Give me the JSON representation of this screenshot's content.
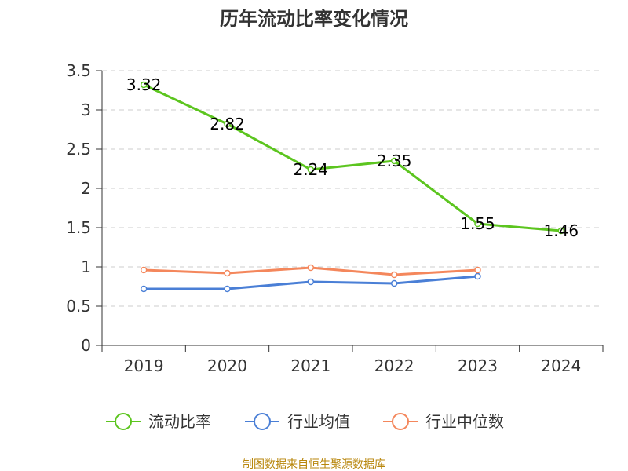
{
  "chart_data": {
    "type": "line",
    "title": "历年流动比率变化情况",
    "categories": [
      "2019",
      "2020",
      "2021",
      "2022",
      "2023",
      "2024"
    ],
    "ylim": [
      0,
      3.5
    ],
    "yticks": [
      "0",
      "0.5",
      "1",
      "1.5",
      "2",
      "2.5",
      "3",
      "3.5"
    ],
    "grid": true,
    "legend_position": "bottom",
    "series": [
      {
        "name": "流动比率",
        "color": "#5cc51f",
        "values": [
          3.32,
          2.82,
          2.24,
          2.35,
          1.55,
          1.46
        ],
        "data_labels": [
          "3.32",
          "2.82",
          "2.24",
          "2.35",
          "1.55",
          "1.46"
        ]
      },
      {
        "name": "行业均值",
        "color": "#4a7fd6",
        "values": [
          0.72,
          0.72,
          0.81,
          0.79,
          0.88,
          null
        ]
      },
      {
        "name": "行业中位数",
        "color": "#f4875c",
        "values": [
          0.96,
          0.92,
          0.99,
          0.9,
          0.96,
          null
        ]
      }
    ]
  },
  "footer": {
    "source": "制图数据来自恒生聚源数据库"
  }
}
